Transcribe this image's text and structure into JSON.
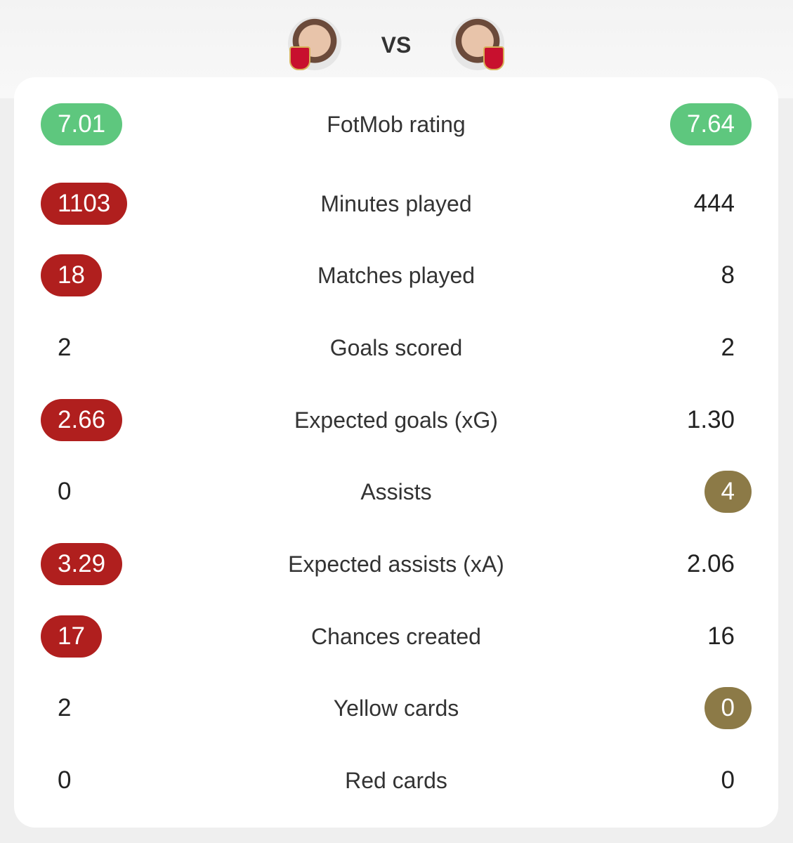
{
  "header": {
    "vs": "VS"
  },
  "rows": [
    {
      "left": "7.01",
      "label": "FotMob rating",
      "right": "7.64",
      "left_color": "#5ec77e",
      "right_color": "#5ec77e"
    },
    {
      "left": "1103",
      "label": "Minutes played",
      "right": "444",
      "left_color": "#b01f1e"
    },
    {
      "left": "18",
      "label": "Matches played",
      "right": "8",
      "left_color": "#b01f1e"
    },
    {
      "left": "2",
      "label": "Goals scored",
      "right": "2"
    },
    {
      "left": "2.66",
      "label": "Expected goals (xG)",
      "right": "1.30",
      "left_color": "#b01f1e"
    },
    {
      "left": "0",
      "label": "Assists",
      "right": "4",
      "right_color": "#8c7a47"
    },
    {
      "left": "3.29",
      "label": "Expected assists (xA)",
      "right": "2.06",
      "left_color": "#b01f1e"
    },
    {
      "left": "17",
      "label": "Chances created",
      "right": "16",
      "left_color": "#b01f1e"
    },
    {
      "left": "2",
      "label": "Yellow cards",
      "right": "0",
      "right_color": "#8c7a47"
    },
    {
      "left": "0",
      "label": "Red cards",
      "right": "0"
    }
  ]
}
